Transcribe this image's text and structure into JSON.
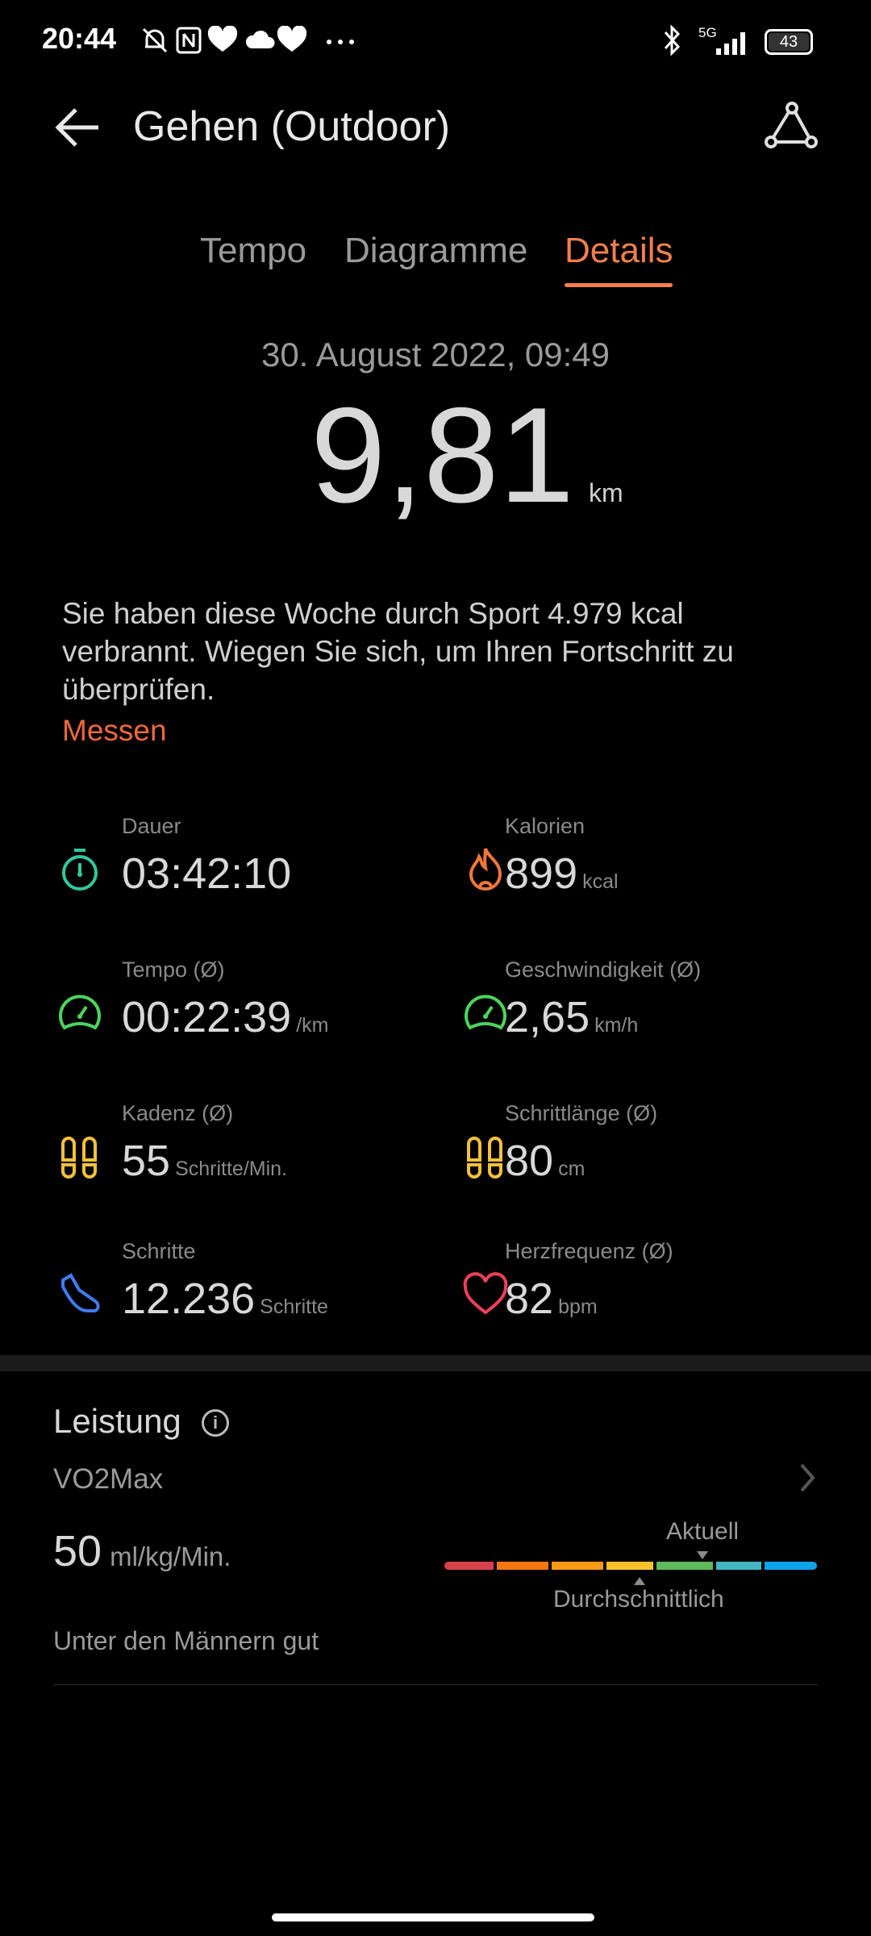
{
  "status_bar": {
    "time": "20:44",
    "network": "5G",
    "battery": "43"
  },
  "header": {
    "title": "Gehen (Outdoor)"
  },
  "tabs": [
    {
      "label": "Tempo"
    },
    {
      "label": "Diagramme"
    },
    {
      "label": "Details",
      "active": true
    }
  ],
  "summary": {
    "date": "30. August 2022, 09:49",
    "distance": "9,81",
    "distance_unit": "km",
    "message": "Sie haben diese Woche durch Sport 4.979 kcal verbrannt. Wiegen Sie sich, um Ihren Fortschritt zu überprüfen.",
    "action": "Messen"
  },
  "metrics": [
    {
      "label": "Dauer",
      "value": "03:42:10",
      "unit": "",
      "icon": "stopwatch-icon",
      "color": "#2fc9a0"
    },
    {
      "label": "Kalorien",
      "value": "899",
      "unit": "kcal",
      "icon": "flame-icon",
      "color": "#f0773a"
    },
    {
      "label": "Tempo (Ø)",
      "value": "00:22:39",
      "unit": "/km",
      "icon": "speedometer-icon",
      "color": "#4cd45c"
    },
    {
      "label": "Geschwindigkeit (Ø)",
      "value": "2,65",
      "unit": "km/h",
      "icon": "speedometer-icon",
      "color": "#4cd45c"
    },
    {
      "label": "Kadenz (Ø)",
      "value": "55",
      "unit": "Schritte/Min.",
      "icon": "footprints-icon",
      "color": "#f5c13b"
    },
    {
      "label": "Schrittlänge (Ø)",
      "value": "80",
      "unit": "cm",
      "icon": "footprints-icon",
      "color": "#f5c13b"
    },
    {
      "label": "Schritte",
      "value": "12.236",
      "unit": "Schritte",
      "icon": "shoe-icon",
      "color": "#3f7cf0"
    },
    {
      "label": "Herzfrequenz (Ø)",
      "value": "82",
      "unit": "bpm",
      "icon": "heart-icon",
      "color": "#f0405a"
    }
  ],
  "performance": {
    "title": "Leistung",
    "metric": "VO2Max",
    "value": "50",
    "unit": "ml/kg/Min.",
    "current_label": "Aktuell",
    "average_label": "Durchschnittlich",
    "rating": "Unter den Männern gut",
    "scale_colors": [
      "#d9414a",
      "#f5760f",
      "#fb9a13",
      "#f9c12a",
      "#5cbb5a",
      "#43b7c3",
      "#0fa2ec"
    ]
  }
}
